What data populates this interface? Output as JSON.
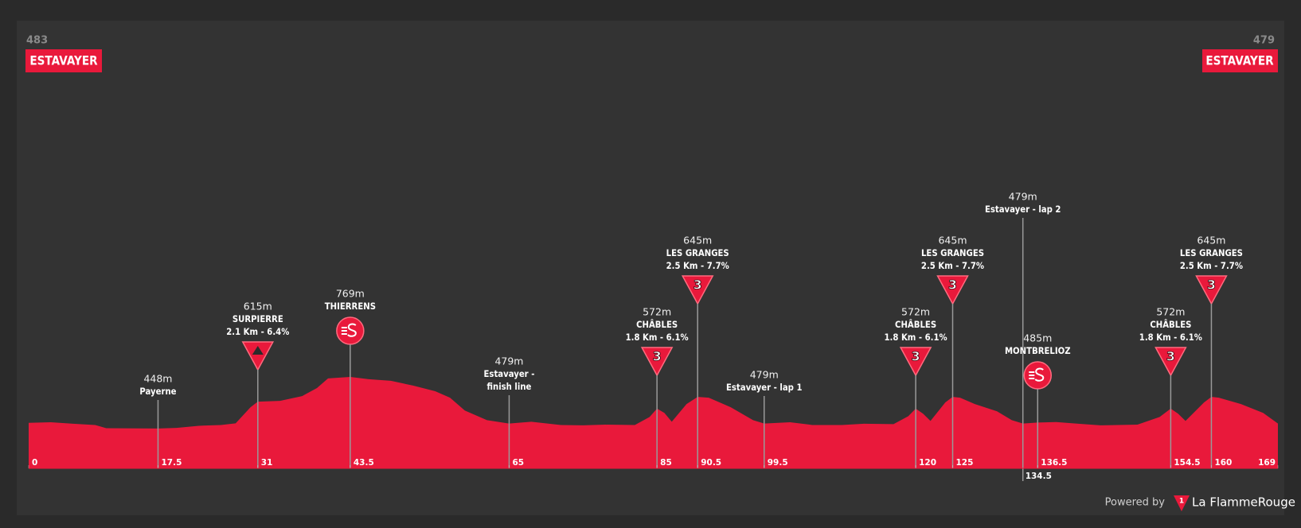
{
  "chart_data": {
    "type": "area",
    "color": "#e9193b",
    "start": {
      "elevation": 483,
      "name": "ESTAVAYER"
    },
    "end": {
      "elevation": 479,
      "name": "ESTAVAYER"
    },
    "xlim": [
      0,
      169
    ],
    "ylim": [
      200,
      2600
    ],
    "xticks": [
      0,
      17.5,
      31,
      43.5,
      65,
      85,
      90.5,
      99.5,
      120,
      125,
      134.5,
      136.5,
      154.5,
      160,
      169
    ],
    "x": [
      0,
      3,
      6,
      9,
      10.5,
      17.5,
      20,
      23,
      26,
      28,
      30,
      31,
      34,
      37,
      39,
      40.5,
      43.5,
      46,
      49,
      52,
      55,
      57,
      59,
      62,
      65,
      68,
      72,
      75,
      78,
      82,
      84,
      85,
      86,
      87,
      89,
      90.5,
      92,
      95,
      98,
      99.5,
      103,
      106,
      110,
      113,
      117,
      119,
      120,
      121,
      122,
      124,
      125,
      126,
      128,
      131,
      133,
      134.5,
      136.5,
      139,
      142,
      145,
      150,
      153,
      154.5,
      155.5,
      156.5,
      159,
      160,
      161,
      164,
      167,
      169
    ],
    "values": [
      483,
      487,
      478,
      470,
      450,
      448,
      452,
      465,
      470,
      480,
      580,
      615,
      620,
      650,
      700,
      760,
      769,
      755,
      745,
      715,
      680,
      640,
      560,
      500,
      479,
      490,
      470,
      468,
      472,
      470,
      520,
      572,
      545,
      490,
      600,
      645,
      640,
      580,
      500,
      479,
      487,
      470,
      470,
      478,
      475,
      525,
      572,
      540,
      495,
      610,
      645,
      640,
      600,
      555,
      500,
      479,
      485,
      488,
      478,
      468,
      472,
      520,
      572,
      540,
      495,
      610,
      645,
      640,
      600,
      545,
      479
    ],
    "markers": [
      {
        "x": 17.5,
        "elevation": "448m",
        "lines": [
          "Payerne"
        ]
      },
      {
        "x": 31,
        "elevation": "615m",
        "lines": [
          "SURPIERRE",
          "2.1 Km - 6.4%"
        ],
        "icon": "climb"
      },
      {
        "x": 43.5,
        "elevation": "769m",
        "lines": [
          "THIERRENS"
        ],
        "icon": "sprint"
      },
      {
        "x": 65,
        "elevation": "479m",
        "lines": [
          "Estavayer -",
          "finish line"
        ]
      },
      {
        "x": 85,
        "elevation": "572m",
        "lines": [
          "CHÂBLES",
          "1.8 Km - 6.1%"
        ],
        "icon": "category",
        "category": "3"
      },
      {
        "x": 90.5,
        "elevation": "645m",
        "lines": [
          "LES GRANGES",
          "2.5 Km - 7.7%"
        ],
        "icon": "category",
        "category": "3"
      },
      {
        "x": 99.5,
        "elevation": "479m",
        "lines": [
          "Estavayer - lap 1"
        ]
      },
      {
        "x": 120,
        "elevation": "572m",
        "lines": [
          "CHÂBLES",
          "1.8 Km - 6.1%"
        ],
        "icon": "category",
        "category": "3"
      },
      {
        "x": 125,
        "elevation": "645m",
        "lines": [
          "LES GRANGES",
          "2.5 Km - 7.7%"
        ],
        "icon": "category",
        "category": "3"
      },
      {
        "x": 134.5,
        "elevation": "479m",
        "lines": [
          "Estavayer - lap 2"
        ]
      },
      {
        "x": 136.5,
        "elevation": "485m",
        "lines": [
          "MONTBRELIOZ"
        ],
        "icon": "sprint"
      },
      {
        "x": 154.5,
        "elevation": "572m",
        "lines": [
          "CHÂBLES",
          "1.8 Km - 6.1%"
        ],
        "icon": "category",
        "category": "3"
      },
      {
        "x": 160,
        "elevation": "645m",
        "lines": [
          "LES GRANGES",
          "2.5 Km - 7.7%"
        ],
        "icon": "category",
        "category": "3"
      }
    ]
  },
  "footer": {
    "powered_by": "Powered by",
    "logo_mark": "1",
    "brand": "La FlammeRouge"
  }
}
